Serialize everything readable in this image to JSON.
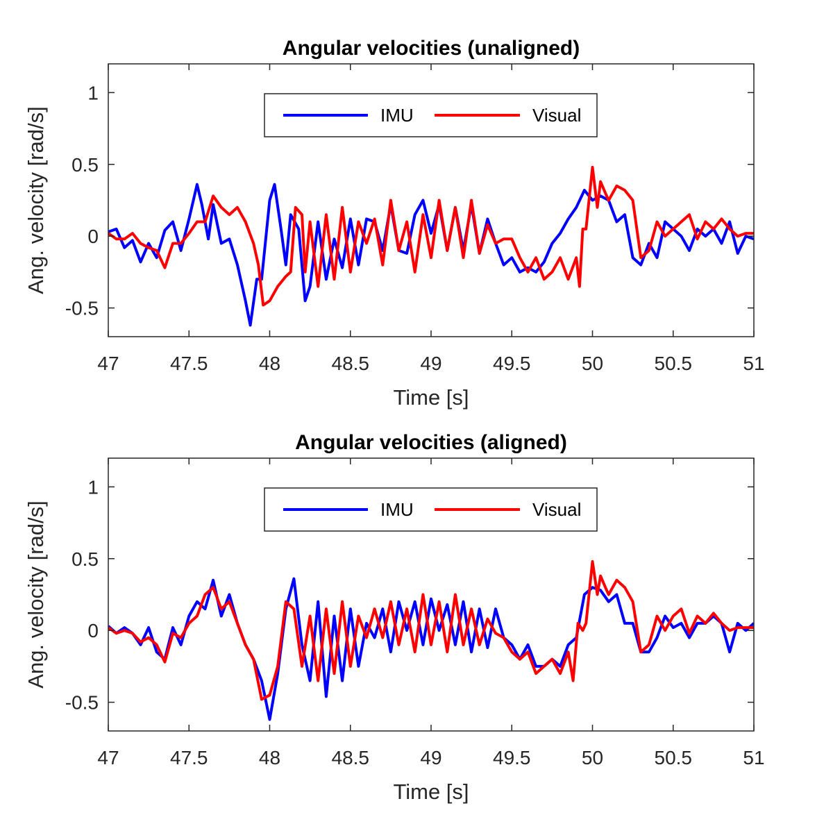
{
  "chart_data": [
    {
      "type": "line",
      "title": "Angular velocities (unaligned)",
      "xlabel": "Time [s]",
      "ylabel": "Ang. velocity [rad/s]",
      "xlim": [
        47,
        51
      ],
      "ylim": [
        -0.7,
        1.2
      ],
      "xticks": [
        47,
        47.5,
        48,
        48.5,
        49,
        49.5,
        50,
        50.5,
        51
      ],
      "xtick_labels": [
        "47",
        "47.5",
        "48",
        "48.5",
        "49",
        "49.5",
        "50",
        "50.5",
        "51"
      ],
      "yticks": [
        -0.5,
        0,
        0.5,
        1
      ],
      "ytick_labels": [
        "-0.5",
        "0",
        "0.5",
        "1"
      ],
      "legend": {
        "position": "top-center",
        "entries": [
          "IMU",
          "Visual"
        ]
      },
      "series": [
        {
          "name": "IMU",
          "color": "#0000ff",
          "x": [
            47.0,
            47.05,
            47.1,
            47.15,
            47.2,
            47.25,
            47.3,
            47.35,
            47.4,
            47.45,
            47.5,
            47.55,
            47.58,
            47.62,
            47.65,
            47.7,
            47.75,
            47.8,
            47.85,
            47.88,
            47.92,
            47.95,
            48.0,
            48.03,
            48.07,
            48.1,
            48.13,
            48.18,
            48.22,
            48.25,
            48.3,
            48.35,
            48.4,
            48.45,
            48.5,
            48.55,
            48.6,
            48.65,
            48.7,
            48.75,
            48.8,
            48.85,
            48.9,
            48.95,
            49.0,
            49.05,
            49.1,
            49.15,
            49.2,
            49.25,
            49.3,
            49.35,
            49.4,
            49.45,
            49.5,
            49.55,
            49.6,
            49.65,
            49.7,
            49.75,
            49.8,
            49.85,
            49.9,
            49.95,
            50.0,
            50.05,
            50.1,
            50.15,
            50.2,
            50.25,
            50.3,
            50.35,
            50.4,
            50.45,
            50.5,
            50.55,
            50.6,
            50.65,
            50.7,
            50.75,
            50.8,
            50.85,
            50.9,
            50.95,
            51.0
          ],
          "y": [
            0.03,
            0.05,
            -0.08,
            -0.03,
            -0.18,
            -0.05,
            -0.15,
            0.04,
            0.1,
            -0.1,
            0.12,
            0.36,
            0.22,
            -0.02,
            0.22,
            -0.05,
            -0.02,
            -0.2,
            -0.45,
            -0.62,
            -0.3,
            -0.3,
            0.25,
            0.36,
            0.05,
            -0.2,
            0.15,
            0.05,
            -0.45,
            -0.35,
            0.1,
            -0.3,
            -0.02,
            -0.22,
            0.12,
            -0.2,
            0.12,
            0.1,
            -0.1,
            0.22,
            -0.1,
            -0.12,
            0.15,
            0.25,
            0.02,
            0.22,
            -0.1,
            0.2,
            -0.1,
            0.22,
            -0.12,
            0.12,
            -0.05,
            -0.2,
            -0.15,
            -0.25,
            -0.22,
            -0.25,
            -0.18,
            -0.05,
            0.02,
            0.12,
            0.2,
            0.32,
            0.25,
            0.28,
            0.25,
            0.1,
            0.15,
            -0.15,
            -0.2,
            -0.05,
            -0.15,
            0.1,
            0.05,
            0.0,
            -0.1,
            0.05,
            0.0,
            0.05,
            -0.05,
            0.1,
            -0.12,
            0.0,
            -0.02
          ]
        },
        {
          "name": "Visual",
          "color": "#ff0000",
          "x": [
            47.0,
            47.05,
            47.1,
            47.15,
            47.2,
            47.25,
            47.3,
            47.35,
            47.4,
            47.45,
            47.5,
            47.55,
            47.6,
            47.65,
            47.7,
            47.75,
            47.8,
            47.85,
            47.9,
            47.93,
            47.96,
            48.0,
            48.05,
            48.1,
            48.13,
            48.16,
            48.2,
            48.22,
            48.25,
            48.3,
            48.35,
            48.4,
            48.45,
            48.5,
            48.55,
            48.6,
            48.65,
            48.7,
            48.75,
            48.8,
            48.85,
            48.9,
            48.95,
            49.0,
            49.05,
            49.1,
            49.15,
            49.2,
            49.25,
            49.3,
            49.35,
            49.4,
            49.45,
            49.5,
            49.55,
            49.6,
            49.65,
            49.7,
            49.75,
            49.8,
            49.85,
            49.9,
            49.92,
            49.94,
            49.96,
            50.0,
            50.03,
            50.05,
            50.08,
            50.1,
            50.15,
            50.2,
            50.25,
            50.3,
            50.35,
            50.4,
            50.45,
            50.5,
            50.55,
            50.6,
            50.65,
            50.7,
            50.75,
            50.8,
            50.85,
            50.9,
            50.95,
            51.0
          ],
          "y": [
            0.02,
            -0.02,
            -0.02,
            0.02,
            -0.05,
            -0.08,
            -0.1,
            -0.22,
            -0.05,
            -0.05,
            0.02,
            0.1,
            0.1,
            0.28,
            0.2,
            0.15,
            0.2,
            0.1,
            -0.05,
            -0.2,
            -0.48,
            -0.45,
            -0.35,
            -0.28,
            -0.25,
            0.2,
            0.15,
            -0.25,
            0.1,
            -0.35,
            0.15,
            -0.3,
            0.2,
            -0.25,
            0.1,
            -0.05,
            0.12,
            -0.2,
            0.25,
            -0.1,
            0.1,
            -0.25,
            0.15,
            -0.15,
            0.25,
            -0.1,
            0.2,
            -0.15,
            0.25,
            -0.12,
            0.08,
            -0.05,
            -0.02,
            -0.02,
            -0.15,
            -0.25,
            -0.15,
            -0.3,
            -0.25,
            -0.15,
            -0.3,
            -0.15,
            -0.35,
            0.05,
            0.05,
            0.48,
            0.2,
            0.38,
            0.3,
            0.25,
            0.35,
            0.32,
            0.25,
            -0.15,
            -0.1,
            0.1,
            0.0,
            0.05,
            0.1,
            0.15,
            -0.02,
            0.1,
            0.05,
            0.12,
            0.05,
            0.0,
            0.02,
            0.02
          ]
        }
      ]
    },
    {
      "type": "line",
      "title": "Angular velocities (aligned)",
      "xlabel": "Time [s]",
      "ylabel": "Ang. velocity [rad/s]",
      "xlim": [
        47,
        51
      ],
      "ylim": [
        -0.7,
        1.2
      ],
      "xticks": [
        47,
        47.5,
        48,
        48.5,
        49,
        49.5,
        50,
        50.5,
        51
      ],
      "xtick_labels": [
        "47",
        "47.5",
        "48",
        "48.5",
        "49",
        "49.5",
        "50",
        "50.5",
        "51"
      ],
      "yticks": [
        -0.5,
        0,
        0.5,
        1
      ],
      "ytick_labels": [
        "-0.5",
        "0",
        "0.5",
        "1"
      ],
      "legend": {
        "position": "top-center",
        "entries": [
          "IMU",
          "Visual"
        ]
      },
      "series": [
        {
          "name": "IMU",
          "color": "#0000ff",
          "x": [
            47.0,
            47.05,
            47.1,
            47.15,
            47.2,
            47.25,
            47.3,
            47.35,
            47.4,
            47.45,
            47.5,
            47.55,
            47.6,
            47.65,
            47.7,
            47.75,
            47.8,
            47.85,
            47.9,
            47.95,
            48.0,
            48.05,
            48.1,
            48.15,
            48.2,
            48.25,
            48.3,
            48.35,
            48.4,
            48.45,
            48.5,
            48.55,
            48.6,
            48.65,
            48.7,
            48.75,
            48.8,
            48.85,
            48.9,
            48.95,
            49.0,
            49.05,
            49.1,
            49.15,
            49.2,
            49.25,
            49.3,
            49.35,
            49.4,
            49.45,
            49.5,
            49.55,
            49.6,
            49.65,
            49.7,
            49.75,
            49.8,
            49.85,
            49.9,
            49.95,
            50.0,
            50.05,
            50.1,
            50.15,
            50.2,
            50.25,
            50.3,
            50.35,
            50.4,
            50.45,
            50.5,
            50.55,
            50.6,
            50.65,
            50.7,
            50.75,
            50.8,
            50.85,
            50.9,
            50.95,
            51.0
          ],
          "y": [
            0.03,
            -0.02,
            0.02,
            -0.02,
            -0.1,
            0.02,
            -0.15,
            -0.2,
            0.02,
            -0.1,
            0.1,
            0.2,
            0.15,
            0.35,
            0.1,
            0.25,
            0.05,
            -0.1,
            -0.2,
            -0.35,
            -0.62,
            -0.3,
            0.15,
            0.36,
            -0.1,
            -0.35,
            0.2,
            -0.46,
            0.1,
            -0.35,
            0.15,
            -0.25,
            0.05,
            -0.05,
            0.15,
            -0.15,
            0.2,
            0.0,
            0.2,
            -0.1,
            0.22,
            0.0,
            0.18,
            -0.1,
            0.2,
            -0.15,
            0.15,
            -0.12,
            0.15,
            -0.05,
            -0.1,
            -0.2,
            -0.1,
            -0.25,
            -0.25,
            -0.2,
            -0.25,
            -0.1,
            -0.05,
            0.25,
            0.3,
            0.28,
            0.2,
            0.25,
            0.05,
            0.05,
            -0.15,
            -0.15,
            -0.05,
            0.1,
            0.02,
            0.05,
            -0.05,
            0.05,
            0.05,
            0.1,
            0.05,
            -0.15,
            0.05,
            0.0,
            0.05
          ]
        },
        {
          "name": "Visual",
          "color": "#ff0000",
          "x": [
            47.0,
            47.05,
            47.1,
            47.15,
            47.2,
            47.25,
            47.3,
            47.35,
            47.4,
            47.45,
            47.5,
            47.55,
            47.6,
            47.65,
            47.7,
            47.75,
            47.8,
            47.85,
            47.9,
            47.95,
            48.0,
            48.05,
            48.1,
            48.15,
            48.2,
            48.25,
            48.3,
            48.35,
            48.4,
            48.45,
            48.5,
            48.55,
            48.6,
            48.65,
            48.7,
            48.75,
            48.8,
            48.85,
            48.9,
            48.95,
            49.0,
            49.05,
            49.1,
            49.15,
            49.2,
            49.25,
            49.3,
            49.35,
            49.4,
            49.45,
            49.5,
            49.55,
            49.6,
            49.65,
            49.7,
            49.75,
            49.8,
            49.85,
            49.88,
            49.91,
            49.94,
            49.96,
            50.0,
            50.03,
            50.05,
            50.08,
            50.1,
            50.15,
            50.2,
            50.25,
            50.3,
            50.35,
            50.4,
            50.45,
            50.5,
            50.55,
            50.6,
            50.65,
            50.7,
            50.75,
            50.8,
            50.85,
            50.9,
            50.95,
            51.0
          ],
          "y": [
            0.02,
            -0.02,
            0.0,
            -0.02,
            -0.08,
            -0.05,
            -0.1,
            -0.22,
            -0.02,
            -0.05,
            0.05,
            0.1,
            0.25,
            0.3,
            0.15,
            0.2,
            0.05,
            -0.1,
            -0.2,
            -0.48,
            -0.45,
            -0.25,
            0.2,
            0.15,
            -0.25,
            0.1,
            -0.35,
            0.15,
            -0.3,
            0.2,
            -0.25,
            0.1,
            -0.05,
            0.15,
            -0.05,
            0.2,
            -0.1,
            0.15,
            -0.15,
            0.25,
            -0.1,
            0.2,
            -0.15,
            0.25,
            -0.1,
            0.15,
            -0.1,
            0.08,
            -0.02,
            -0.05,
            -0.15,
            -0.2,
            -0.15,
            -0.3,
            -0.25,
            -0.2,
            -0.3,
            -0.15,
            -0.35,
            0.05,
            0.0,
            0.05,
            0.48,
            0.25,
            0.38,
            0.3,
            0.25,
            0.35,
            0.3,
            0.2,
            -0.15,
            -0.1,
            0.1,
            0.0,
            0.1,
            0.15,
            -0.02,
            0.1,
            0.05,
            0.12,
            0.05,
            0.0,
            0.02,
            0.02,
            0.02
          ]
        }
      ]
    }
  ]
}
